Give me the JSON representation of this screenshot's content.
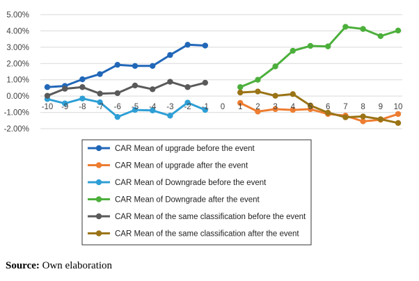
{
  "chart_data": {
    "type": "line",
    "title": "",
    "xlabel": "",
    "ylabel": "",
    "x_ticks": [
      "-10",
      "-9",
      "-8",
      "-7",
      "-6",
      "-5",
      "-4",
      "-3",
      "-2",
      "-1",
      "0",
      "1",
      "2",
      "3",
      "4",
      "5",
      "6",
      "7",
      "8",
      "9",
      "10"
    ],
    "y_ticks": [
      "5.00%",
      "4.00%",
      "3.00%",
      "2.00%",
      "1.00%",
      "0.00%",
      "-1.00%",
      "-2.00%"
    ],
    "ylim": [
      -2.0,
      5.0
    ],
    "xlim": [
      -10,
      10
    ],
    "grid": "horizontal",
    "legend_position": "bottom",
    "series": [
      {
        "name": "CAR Mean of upgrade before the event",
        "color": "#2167b8",
        "x": [
          -10,
          -9,
          -8,
          -7,
          -6,
          -5,
          -4,
          -3,
          -2,
          -1
        ],
        "values": [
          0.55,
          0.62,
          1.03,
          1.35,
          1.92,
          1.85,
          1.85,
          2.52,
          3.15,
          3.1
        ]
      },
      {
        "name": "CAR Mean of upgrade after the event",
        "color": "#ed7d31",
        "x": [
          1,
          2,
          3,
          4,
          5,
          6,
          7,
          8,
          9,
          10
        ],
        "values": [
          -0.42,
          -0.95,
          -0.8,
          -0.85,
          -0.8,
          -1.1,
          -1.2,
          -1.55,
          -1.45,
          -1.1
        ]
      },
      {
        "name": "CAR Mean of Downgrade before the event",
        "color": "#2e9fd6",
        "x": [
          -10,
          -9,
          -8,
          -7,
          -6,
          -5,
          -4,
          -3,
          -2,
          -1
        ],
        "values": [
          -0.18,
          -0.45,
          -0.15,
          -0.38,
          -1.28,
          -0.85,
          -0.88,
          -1.2,
          -0.4,
          -0.85
        ]
      },
      {
        "name": "CAR Mean of Downgrade after the event",
        "color": "#4caf3c",
        "x": [
          1,
          2,
          3,
          4,
          5,
          6,
          7,
          8,
          9,
          10
        ],
        "values": [
          0.55,
          1.0,
          1.82,
          2.78,
          3.08,
          3.05,
          4.25,
          4.12,
          3.68,
          4.02
        ]
      },
      {
        "name": "CAR Mean of the same classification before the event",
        "color": "#5a5a5a",
        "x": [
          -10,
          -9,
          -8,
          -7,
          -6,
          -5,
          -4,
          -3,
          -2,
          -1
        ],
        "values": [
          0.02,
          0.45,
          0.55,
          0.15,
          0.18,
          0.65,
          0.42,
          0.88,
          0.55,
          0.82
        ]
      },
      {
        "name": "CAR Mean of the same classification after the event",
        "color": "#9a7416",
        "x": [
          1,
          2,
          3,
          4,
          5,
          6,
          7,
          8,
          9,
          10
        ],
        "values": [
          0.22,
          0.28,
          0.02,
          0.12,
          -0.58,
          -1.02,
          -1.3,
          -1.25,
          -1.42,
          -1.65
        ]
      }
    ]
  },
  "source": {
    "label": "Source:",
    "text": " Own elaboration"
  }
}
